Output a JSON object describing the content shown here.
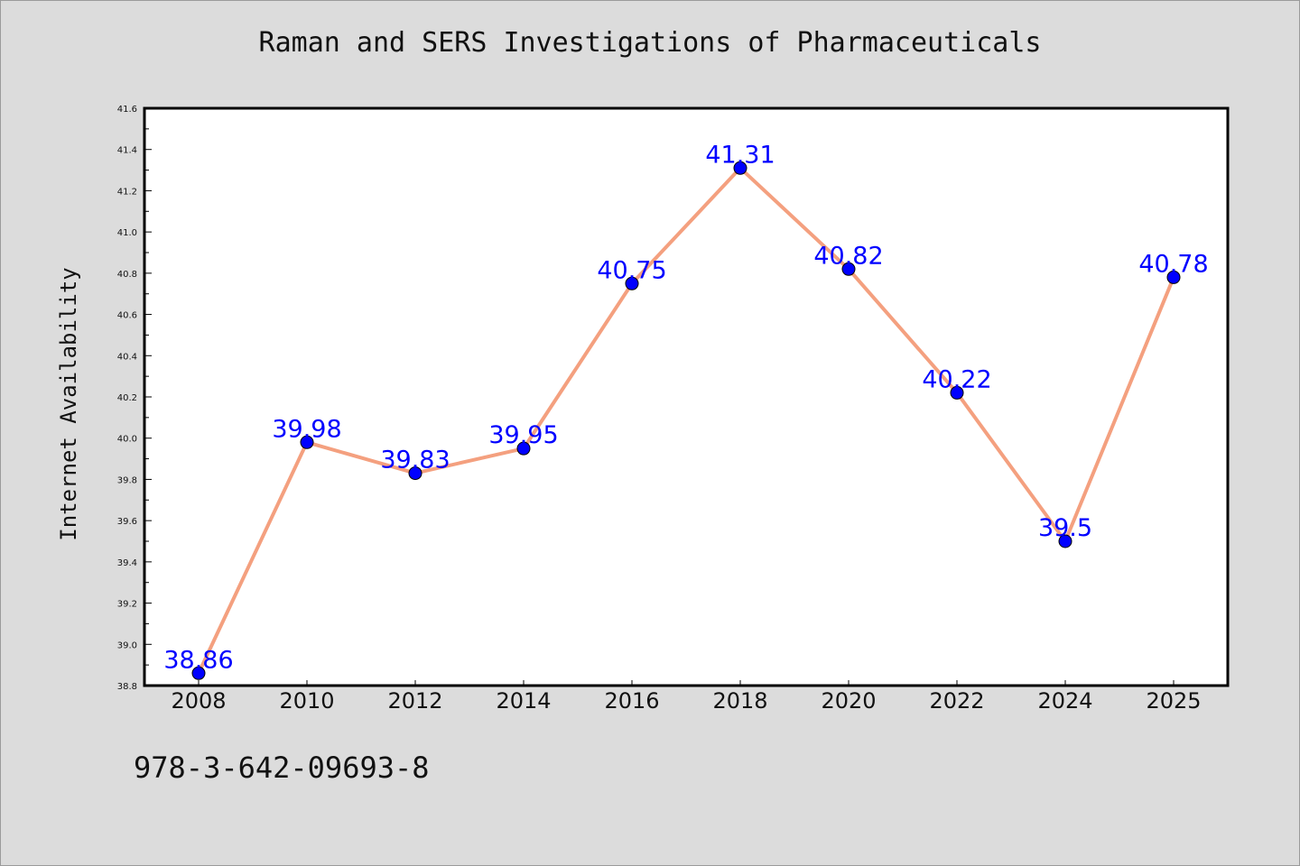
{
  "chart_data": {
    "type": "line",
    "title": "Raman and SERS Investigations of Pharmaceuticals",
    "xlabel": "",
    "ylabel": "Internet Availability",
    "categories": [
      "2008",
      "2010",
      "2012",
      "2014",
      "2016",
      "2018",
      "2020",
      "2022",
      "2024",
      "2025"
    ],
    "series": [
      {
        "values": [
          38.86,
          39.98,
          39.83,
          39.95,
          40.75,
          41.31,
          40.82,
          40.22,
          39.5,
          40.78
        ],
        "line_color": "#f4a07f",
        "marker_color": "#0000ff",
        "label_color": "#0000ff",
        "data_labels": [
          "38.86",
          "39.98",
          "39.83",
          "39.95",
          "40.75",
          "41.31",
          "40.82",
          "40.22",
          "39.5",
          "40.78"
        ]
      }
    ],
    "ylim": [
      38.8,
      41.6
    ],
    "yticks": [
      "38.8",
      "39.0",
      "39.2",
      "39.4",
      "39.6",
      "39.8",
      "40.0",
      "40.2",
      "40.4",
      "40.6",
      "40.8",
      "41.0",
      "41.2",
      "41.4",
      "41.6"
    ],
    "grid": false,
    "legend": "none"
  },
  "footer": {
    "isbn": "978-3-642-09693-8"
  },
  "colors": {
    "background": "#dcdcdc",
    "plot_area": "#ffffff",
    "axis": "#000000"
  }
}
